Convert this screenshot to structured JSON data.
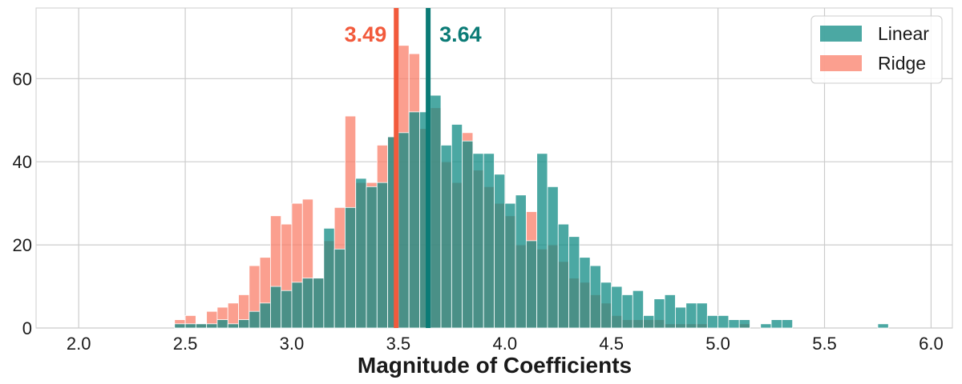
{
  "chart_data": {
    "type": "bar",
    "subtype": "overlapping-histogram",
    "title": "",
    "xlabel": "Magnitude of Coefficients",
    "ylabel": "",
    "xlim": [
      1.8,
      6.1
    ],
    "ylim": [
      0,
      77
    ],
    "grid": true,
    "legend_position": "top-right",
    "x_ticks": [
      "2.0",
      "2.5",
      "3.0",
      "3.5",
      "4.0",
      "4.5",
      "5.0",
      "5.5",
      "6.0"
    ],
    "y_ticks": [
      "0",
      "20",
      "40",
      "60"
    ],
    "bin_start": 2.45,
    "bin_width": 0.05,
    "series": [
      {
        "name": "Linear",
        "color": "#0f8b84",
        "values": [
          1,
          1,
          1,
          1,
          2,
          1,
          2,
          4,
          6,
          10,
          9,
          11,
          12,
          12,
          24,
          19,
          29,
          36,
          34,
          35,
          46,
          47,
          52,
          52,
          56,
          44,
          49,
          45,
          42,
          42,
          37,
          30,
          32,
          21,
          42,
          34,
          25,
          22,
          17,
          15,
          11,
          10,
          8,
          9,
          3,
          7,
          8,
          5,
          6,
          6,
          3,
          3,
          2,
          2,
          0,
          1,
          2,
          2,
          0,
          0,
          0,
          0,
          0,
          0,
          0,
          0,
          1
        ]
      },
      {
        "name": "Ridge",
        "color": "#fa7f6a",
        "values": [
          2,
          3,
          1,
          4,
          5,
          6,
          8,
          15,
          17,
          27,
          25,
          30,
          31,
          12,
          21,
          29,
          51,
          35,
          35,
          44,
          46,
          68,
          66,
          48,
          53,
          40,
          35,
          47,
          38,
          34,
          30,
          27,
          20,
          28,
          19,
          20,
          16,
          12,
          11,
          8,
          6,
          3,
          2,
          2,
          2,
          2,
          1,
          1,
          1,
          1,
          0,
          0,
          0,
          1
        ]
      }
    ],
    "mean_lines": [
      {
        "series": "Ridge",
        "value": 3.49,
        "label": "3.49",
        "color": "#f25a3c"
      },
      {
        "series": "Linear",
        "value": 3.64,
        "label": "3.64",
        "color": "#0b7b76"
      }
    ]
  }
}
